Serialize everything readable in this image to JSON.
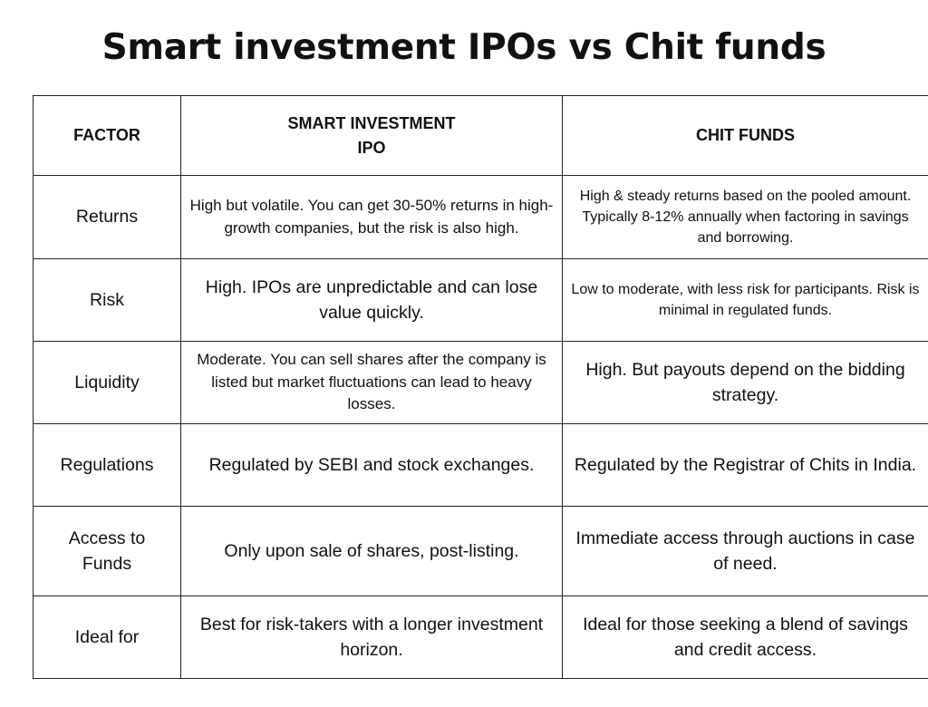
{
  "header": {
    "title": "Smart investment IPOs vs Chit funds"
  },
  "table": {
    "columns": [
      "FACTOR",
      "SMART INVESTMENT IPO",
      "CHIT FUNDS"
    ],
    "rows": [
      [
        "Returns",
        "High but volatile. You can get 30-50% returns in high-growth companies, but the risk is also high.",
        "High & steady returns based on the pooled amount. Typically 8-12% annually when factoring in savings and borrowing."
      ],
      [
        "Risk",
        "High. IPOs are unpredictable and can lose value quickly.",
        "Low to moderate, with less risk for participants. Risk is minimal in regulated funds."
      ],
      [
        "Liquidity",
        "Moderate. You can sell shares after the company is listed but market fluctuations can lead to heavy losses.",
        "High. But payouts depend on the bidding strategy."
      ],
      [
        "Regulations",
        "Regulated by SEBI and stock exchanges.",
        "Regulated by the Registrar of Chits in India."
      ],
      [
        "Access to Funds",
        "Only upon sale of shares, post-listing.",
        "Immediate access through auctions in case of need."
      ],
      [
        "Ideal for",
        "Best for risk-takers with a longer investment horizon.",
        "Ideal for those seeking a blend of savings and credit access."
      ]
    ]
  }
}
